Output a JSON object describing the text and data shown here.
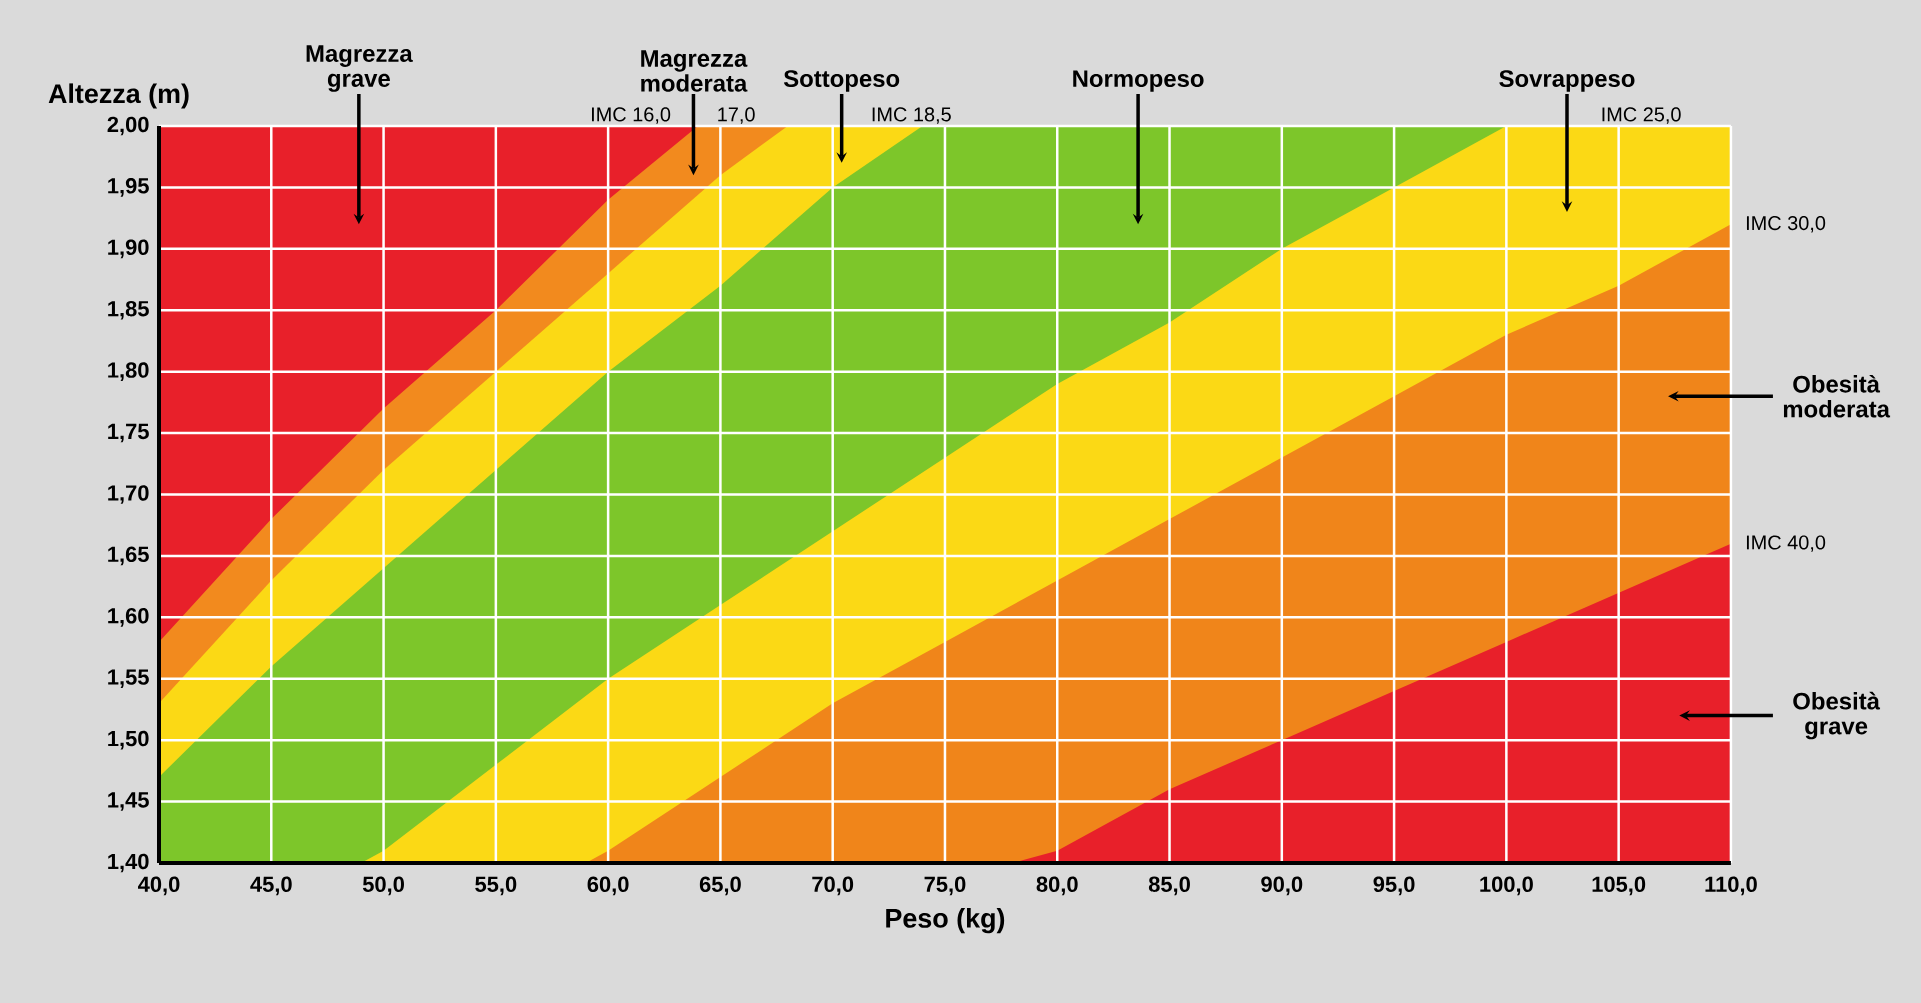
{
  "chart_data": {
    "type": "area",
    "xlabel": "Peso (kg)",
    "ylabel": "Altezza (m)",
    "xlim": [
      40,
      110
    ],
    "ylim": [
      1.4,
      2.0
    ],
    "xticks": [
      {
        "value": 40,
        "label": "40,0"
      },
      {
        "value": 45,
        "label": "45,0"
      },
      {
        "value": 50,
        "label": "50,0"
      },
      {
        "value": 55,
        "label": "55,0"
      },
      {
        "value": 60,
        "label": "60,0"
      },
      {
        "value": 65,
        "label": "65,0"
      },
      {
        "value": 70,
        "label": "70,0"
      },
      {
        "value": 75,
        "label": "75,0"
      },
      {
        "value": 80,
        "label": "80,0"
      },
      {
        "value": 85,
        "label": "85,0"
      },
      {
        "value": 90,
        "label": "90,0"
      },
      {
        "value": 95,
        "label": "95,0"
      },
      {
        "value": 100,
        "label": "100,0"
      },
      {
        "value": 105,
        "label": "105,0"
      },
      {
        "value": 110,
        "label": "110,0"
      }
    ],
    "yticks": [
      {
        "value": 1.4,
        "label": "1,40"
      },
      {
        "value": 1.45,
        "label": "1,45"
      },
      {
        "value": 1.5,
        "label": "1,50"
      },
      {
        "value": 1.55,
        "label": "1,55"
      },
      {
        "value": 1.6,
        "label": "1,60"
      },
      {
        "value": 1.65,
        "label": "1,65"
      },
      {
        "value": 1.7,
        "label": "1,70"
      },
      {
        "value": 1.75,
        "label": "1,75"
      },
      {
        "value": 1.8,
        "label": "1,80"
      },
      {
        "value": 1.85,
        "label": "1,85"
      },
      {
        "value": 1.9,
        "label": "1,90"
      },
      {
        "value": 1.95,
        "label": "1,95"
      },
      {
        "value": 2.0,
        "label": "2,00"
      }
    ],
    "grid": true,
    "series": [
      {
        "color": "#e8202a",
        "x": [
          40,
          64
        ],
        "values": [
          2.0,
          2.0
        ]
      },
      {
        "color": "#f28a1e",
        "x": [
          40,
          45,
          50,
          55,
          60,
          64,
          68
        ],
        "values": [
          1.58,
          1.68,
          1.77,
          1.85,
          1.94,
          2.0,
          2.0
        ]
      },
      {
        "color": "#fbd915",
        "x": [
          40,
          45,
          50,
          55,
          60,
          65,
          68,
          74
        ],
        "values": [
          1.53,
          1.63,
          1.72,
          1.8,
          1.88,
          1.96,
          2.0,
          2.0
        ]
      },
      {
        "color": "#7dc62a",
        "x": [
          40,
          45,
          50,
          55,
          60,
          65,
          70,
          74,
          100
        ],
        "values": [
          1.47,
          1.56,
          1.64,
          1.72,
          1.8,
          1.87,
          1.95,
          2.0,
          2.0
        ]
      },
      {
        "color": "#fbd915",
        "x": [
          49,
          50,
          55,
          60,
          65,
          70,
          75,
          80,
          85,
          90,
          95,
          100,
          110
        ],
        "values": [
          1.4,
          1.41,
          1.48,
          1.55,
          1.61,
          1.67,
          1.73,
          1.79,
          1.84,
          1.9,
          1.95,
          2.0,
          2.0
        ]
      },
      {
        "color": "#f0851a",
        "x": [
          59,
          60,
          65,
          70,
          75,
          80,
          85,
          90,
          95,
          100,
          105,
          110
        ],
        "values": [
          1.4,
          1.41,
          1.47,
          1.53,
          1.58,
          1.63,
          1.68,
          1.73,
          1.78,
          1.83,
          1.87,
          1.92
        ]
      },
      {
        "color": "#e8202a",
        "x": [
          78,
          80,
          85,
          90,
          95,
          100,
          105,
          110
        ],
        "values": [
          1.4,
          1.41,
          1.46,
          1.5,
          1.54,
          1.58,
          1.62,
          1.66
        ]
      }
    ],
    "annotations": [
      "Magrezza grave",
      {
        "text": "Magrezza moderata",
        "x": 63.8,
        "y": 1.96
      },
      "Sottopeso",
      "Normopeso",
      "Sovrappeso",
      "Obesità moderata",
      "Obesità grave",
      "IMC 16,0",
      "17,0",
      "IMC 18,5",
      "IMC 25,0",
      "IMC 30,0",
      "IMC 40,0"
    ]
  }
}
